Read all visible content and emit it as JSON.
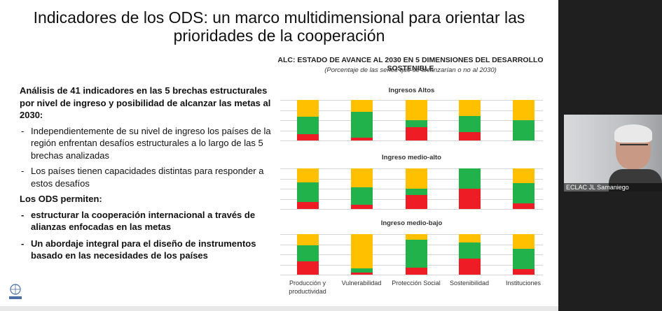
{
  "slide": {
    "title": "Indicadores de los ODS: un marco multidimensional para orientar las prioridades de la cooperación",
    "chart_title": "ALC: ESTADO DE AVANCE AL 2030 EN 5 DIMENSIONES DEL DESARROLLO SOSTENIBLE",
    "chart_subtitle": "(Porcentaje de las series que se alcanzarían o no al 2030)",
    "heading": "Análisis de 41 indicadores en las 5 brechas estructurales por nivel de ingreso y posibilidad de alcanzar las metas al 2030:",
    "bullets": [
      "Independientemente de su nivel de ingreso los países de la región enfrentan desafíos estructurales a lo largo de las 5 brechas analizadas",
      "Los países tienen capacidades distintas para responder a estos desafíos"
    ],
    "ods_heading": "Los ODS permiten:",
    "ods_bullets": [
      "estructurar la cooperación internacional a través de alianzas enfocadas en las metas",
      "Un abordaje integral para el diseño de instrumentos basado en las necesidades de los países"
    ],
    "logo_text": "CEPAL"
  },
  "colors": {
    "yellow": "#ffc000",
    "green": "#21b24b",
    "red": "#ee1c24"
  },
  "chart_data": {
    "type": "bar",
    "stacked": true,
    "categories": [
      "Producción y productividad",
      "Vulnerabilidad",
      "Protección Social",
      "Sostenibilidad",
      "Instituciones"
    ],
    "ylim": [
      0,
      100
    ],
    "grid": true,
    "panels": [
      {
        "title": "Ingresos Altos",
        "series": [
          {
            "values": [
              16,
              7,
              33,
              20,
              0
            ]
          },
          {
            "values": [
              42,
              63,
              17,
              40,
              50
            ]
          },
          {
            "values": [
              42,
              30,
              50,
              40,
              50
            ]
          }
        ]
      },
      {
        "title": "Ingreso medio-alto",
        "series": [
          {
            "values": [
              18,
              10,
              35,
              50,
              13
            ]
          },
          {
            "values": [
              47,
              43,
              15,
              50,
              50
            ]
          },
          {
            "values": [
              35,
              47,
              50,
              0,
              37
            ]
          }
        ]
      },
      {
        "title": "Ingreso medio-bajo",
        "series": [
          {
            "values": [
              33,
              5,
              17,
              40,
              13
            ]
          },
          {
            "values": [
              40,
              10,
              70,
              40,
              50
            ]
          },
          {
            "values": [
              27,
              85,
              13,
              20,
              37
            ]
          }
        ]
      }
    ],
    "series_colors": [
      "#ee1c24",
      "#21b24b",
      "#ffc000"
    ]
  },
  "video": {
    "participant_label": "ECLAC JL Samaniego"
  }
}
